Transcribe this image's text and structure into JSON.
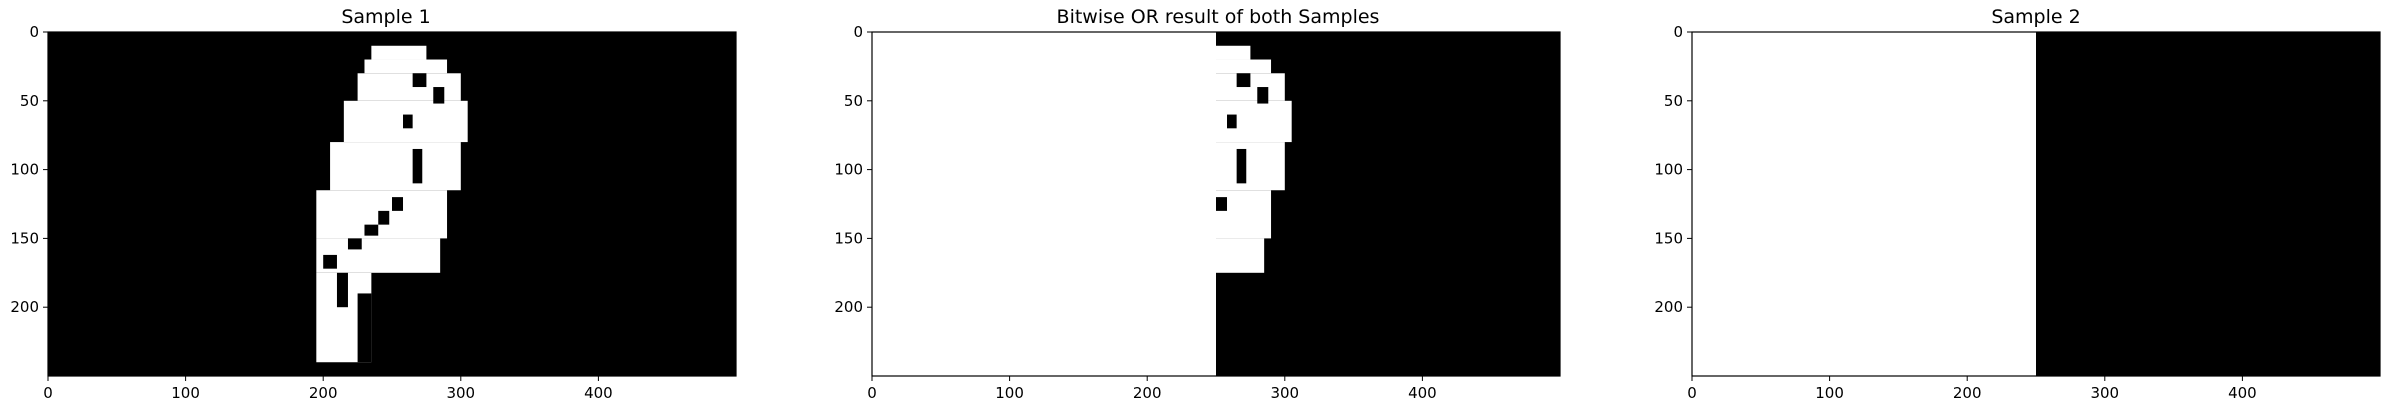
{
  "panels": [
    {
      "title": "Sample 1",
      "kind": "bird",
      "x_ticks": [
        "0",
        "100",
        "200",
        "300",
        "400"
      ],
      "y_ticks": [
        "0",
        "50",
        "100",
        "150",
        "200"
      ]
    },
    {
      "title": "Bitwise OR result of both Samples",
      "kind": "or",
      "x_ticks": [
        "0",
        "100",
        "200",
        "300",
        "400"
      ],
      "y_ticks": [
        "0",
        "50",
        "100",
        "150",
        "200"
      ]
    },
    {
      "title": "Sample 2",
      "kind": "half",
      "x_ticks": [
        "0",
        "100",
        "200",
        "300",
        "400"
      ],
      "y_ticks": [
        "0",
        "50",
        "100",
        "150",
        "200"
      ]
    }
  ],
  "image_size": {
    "width": 500,
    "height": 250
  },
  "mask_split_column": 250,
  "colors": {
    "background_pixel": "#000000",
    "foreground_pixel": "#ffffff"
  }
}
